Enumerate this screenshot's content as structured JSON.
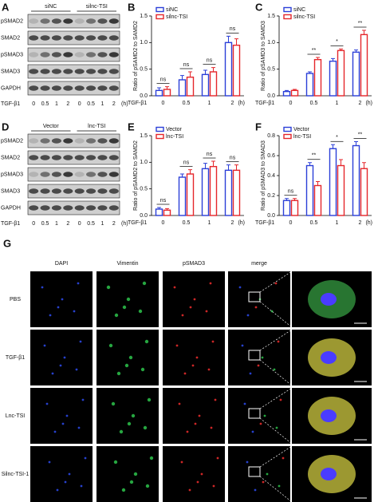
{
  "blots": [
    {
      "letter": "A",
      "groups": [
        "siNC",
        "silnc-TSI"
      ],
      "rows": [
        "pSMAD2",
        "SMAD2",
        "pSMAD3",
        "SMAD3",
        "GAPDH"
      ],
      "treatment": "TGF-β1",
      "doses": [
        "0",
        "0.5",
        "1",
        "2",
        "0",
        "0.5",
        "1",
        "2"
      ],
      "unit": "(h)"
    },
    {
      "letter": "D",
      "groups": [
        "Vector",
        "lnc-TSI"
      ],
      "rows": [
        "pSMAD2",
        "SMAD2",
        "pSMAD3",
        "SMAD3",
        "GAPDH"
      ],
      "treatment": "TGF-β1",
      "doses": [
        "0",
        "0.5",
        "1",
        "2",
        "0",
        "0.5",
        "1",
        "2"
      ],
      "unit": "(h)"
    }
  ],
  "chart_data": [
    {
      "type": "bar",
      "letter": "B",
      "ylabel": "Ratio of pSAMD2 to SAMD2",
      "xlabel": "TGF-β1",
      "xunit": "(h)",
      "categories": [
        "0",
        "0.5",
        "1",
        "2"
      ],
      "series": [
        {
          "name": "siNC",
          "color": "#2b3fd8",
          "values": [
            0.1,
            0.3,
            0.4,
            1.0
          ],
          "errors": [
            0.05,
            0.08,
            0.08,
            0.12
          ]
        },
        {
          "name": "silnc-TSI",
          "color": "#e5262b",
          "values": [
            0.12,
            0.35,
            0.45,
            0.95
          ],
          "errors": [
            0.05,
            0.1,
            0.08,
            0.12
          ]
        }
      ],
      "annotations": [
        "ns",
        "ns",
        "ns",
        "ns"
      ],
      "ylim": [
        0,
        1.5
      ],
      "yticks": [
        {
          "value": 0,
          "label": "0.0"
        },
        {
          "value": 0.5,
          "label": "0.5"
        },
        {
          "value": 1,
          "label": "1.0"
        },
        {
          "value": 1.5,
          "label": "1.5"
        }
      ]
    },
    {
      "type": "bar",
      "letter": "C",
      "ylabel": "Ratio of pSAMD3 to SAMD3",
      "xlabel": "TGF-β1",
      "xunit": "(h)",
      "categories": [
        "0",
        "0.5",
        "1",
        "2"
      ],
      "series": [
        {
          "name": "siNC",
          "color": "#2b3fd8",
          "values": [
            0.08,
            0.42,
            0.65,
            0.82
          ],
          "errors": [
            0.02,
            0.03,
            0.05,
            0.04
          ]
        },
        {
          "name": "silnc-TSI",
          "color": "#e5262b",
          "values": [
            0.1,
            0.68,
            0.85,
            1.15
          ],
          "errors": [
            0.02,
            0.04,
            0.03,
            0.08
          ]
        }
      ],
      "annotations": [
        null,
        "**",
        "*",
        "**"
      ],
      "ylim": [
        0,
        1.5
      ],
      "yticks": [
        {
          "value": 0,
          "label": "0.0"
        },
        {
          "value": 0.5,
          "label": "0.5"
        },
        {
          "value": 1,
          "label": "1.0"
        },
        {
          "value": 1.5,
          "label": "1.5"
        }
      ]
    },
    {
      "type": "bar",
      "letter": "E",
      "ylabel": "Ratio of pSAMD2 to SAMD2",
      "xlabel": "TGF-β1",
      "xunit": "(h)",
      "categories": [
        "0",
        "0.5",
        "1",
        "2"
      ],
      "series": [
        {
          "name": "Vector",
          "color": "#2b3fd8",
          "values": [
            0.12,
            0.72,
            0.88,
            0.85
          ],
          "errors": [
            0.03,
            0.06,
            0.1,
            0.1
          ]
        },
        {
          "name": "lnc-TSI",
          "color": "#e5262b",
          "values": [
            0.1,
            0.78,
            0.92,
            0.85
          ],
          "errors": [
            0.03,
            0.08,
            0.1,
            0.1
          ]
        }
      ],
      "annotations": [
        "ns",
        "ns",
        "ns",
        "ns"
      ],
      "ylim": [
        0,
        1.5
      ],
      "yticks": [
        {
          "value": 0,
          "label": "0.0"
        },
        {
          "value": 0.5,
          "label": "0.5"
        },
        {
          "value": 1,
          "label": "1.0"
        },
        {
          "value": 1.5,
          "label": "1.5"
        }
      ]
    },
    {
      "type": "bar",
      "letter": "F",
      "ylabel": "Ratio of pSMAD3 to SMAD3",
      "xlabel": "TGF-β1",
      "xunit": "(h)",
      "categories": [
        "0",
        "0.5",
        "1",
        "2"
      ],
      "series": [
        {
          "name": "Vector",
          "color": "#2b3fd8",
          "values": [
            0.15,
            0.5,
            0.67,
            0.7
          ],
          "errors": [
            0.02,
            0.03,
            0.04,
            0.04
          ]
        },
        {
          "name": "lnc-TSI",
          "color": "#e5262b",
          "values": [
            0.15,
            0.3,
            0.5,
            0.47
          ],
          "errors": [
            0.02,
            0.04,
            0.06,
            0.06
          ]
        }
      ],
      "annotations": [
        "ns",
        "**",
        "*",
        "**"
      ],
      "ylim": [
        0,
        0.8
      ],
      "yticks": [
        {
          "value": 0,
          "label": "0.0"
        },
        {
          "value": 0.2,
          "label": "0.2"
        },
        {
          "value": 0.4,
          "label": "0.4"
        },
        {
          "value": 0.6,
          "label": "0.6"
        },
        {
          "value": 0.8,
          "label": "0.8"
        }
      ]
    }
  ],
  "imaging": {
    "letter": "G",
    "columns": [
      "DAPI",
      "Vimentin",
      "pSMAD3",
      "merge"
    ],
    "rows": [
      "PBS",
      "TGF-β1",
      "Lnc-TSI",
      "Silnc-TSI-1"
    ]
  }
}
